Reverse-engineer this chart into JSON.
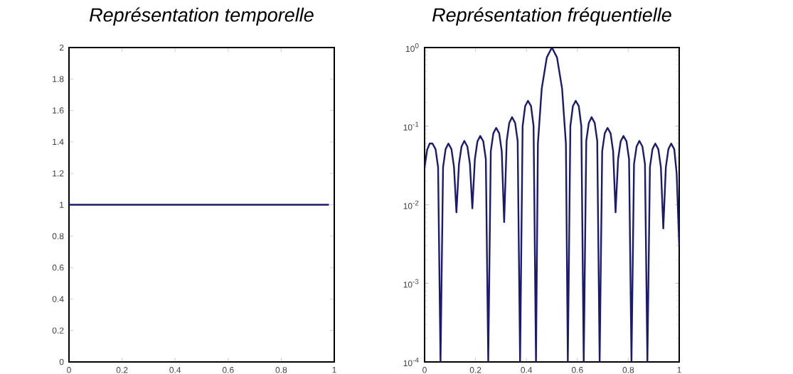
{
  "chart_data": [
    {
      "type": "line",
      "title": "Représentation temporelle",
      "x": [
        0,
        0.98
      ],
      "values": [
        1,
        1
      ],
      "color": "#1a1a6e",
      "xlim": [
        0,
        1
      ],
      "ylim": [
        0,
        2
      ],
      "xticks": [
        0,
        0.2,
        0.4,
        0.6,
        0.8,
        1
      ],
      "yticks": [
        0,
        0.2,
        0.4,
        0.6,
        0.8,
        1,
        1.2,
        1.4,
        1.6,
        1.8,
        2
      ]
    },
    {
      "type": "line",
      "title": "Représentation fréquentielle",
      "log": true,
      "color": "#1a1a6e",
      "xlim": [
        0,
        1
      ],
      "ylim": [
        0.0001,
        1
      ],
      "xticks": [
        0,
        0.2,
        0.4,
        0.6,
        0.8,
        1
      ],
      "yticks": [
        {
          "value": 0.0001,
          "label": "10$^{-4}$"
        },
        {
          "value": 0.001,
          "label": "10$^{-3}$"
        },
        {
          "value": 0.01,
          "label": "10$^{-2}$"
        },
        {
          "value": 0.1,
          "label": "10$^{-1}$"
        },
        {
          "value": 1,
          "label": "10$^{0}$"
        }
      ],
      "x": [
        0,
        0.01,
        0.02,
        0.031,
        0.043,
        0.053,
        0.0625,
        0.0725,
        0.0825,
        0.0935,
        0.1055,
        0.1155,
        0.125,
        0.135,
        0.145,
        0.156,
        0.168,
        0.178,
        0.1875,
        0.1975,
        0.2075,
        0.2185,
        0.2305,
        0.2405,
        0.25,
        0.26,
        0.27,
        0.281,
        0.293,
        0.303,
        0.3125,
        0.3225,
        0.3325,
        0.3435,
        0.3555,
        0.3655,
        0.375,
        0.385,
        0.395,
        0.406,
        0.418,
        0.428,
        0.4375,
        0.445,
        0.46,
        0.48,
        0.5,
        0.52,
        0.54,
        0.555,
        0.5625,
        0.5725,
        0.5825,
        0.5935,
        0.6055,
        0.6155,
        0.625,
        0.635,
        0.645,
        0.656,
        0.668,
        0.678,
        0.6875,
        0.6975,
        0.7075,
        0.7185,
        0.7305,
        0.7405,
        0.75,
        0.76,
        0.77,
        0.781,
        0.793,
        0.803,
        0.8125,
        0.8225,
        0.8325,
        0.8435,
        0.8555,
        0.8655,
        0.875,
        0.885,
        0.895,
        0.906,
        0.918,
        0.928,
        0.9375,
        0.9475,
        0.9575,
        0.9685,
        0.9805,
        0.99,
        1.0
      ],
      "values": [
        0.03,
        0.05,
        0.06,
        0.06,
        0.051,
        0.03,
        0.0001,
        0.03,
        0.051,
        0.06,
        0.051,
        0.03,
        0.008,
        0.033,
        0.055,
        0.065,
        0.055,
        0.033,
        0.009,
        0.038,
        0.064,
        0.075,
        0.064,
        0.038,
        0.0001,
        0.048,
        0.081,
        0.095,
        0.081,
        0.048,
        0.006,
        0.065,
        0.11,
        0.13,
        0.11,
        0.065,
        0.0001,
        0.1,
        0.18,
        0.21,
        0.18,
        0.1,
        0.0001,
        0.06,
        0.3,
        0.75,
        1,
        0.75,
        0.3,
        0.06,
        0.0001,
        0.1,
        0.18,
        0.21,
        0.18,
        0.1,
        0.0001,
        0.065,
        0.11,
        0.13,
        0.11,
        0.065,
        0.0001,
        0.048,
        0.081,
        0.095,
        0.081,
        0.048,
        0.008,
        0.038,
        0.064,
        0.075,
        0.064,
        0.038,
        0.0001,
        0.033,
        0.055,
        0.065,
        0.055,
        0.033,
        0.0001,
        0.03,
        0.051,
        0.06,
        0.051,
        0.03,
        0.005,
        0.03,
        0.051,
        0.06,
        0.051,
        0.025,
        0.003
      ]
    }
  ]
}
